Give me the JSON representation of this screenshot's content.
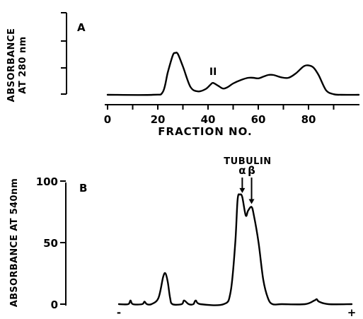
{
  "chart_data": [
    {
      "type": "line",
      "panel_label": "A",
      "xlabel": "FRACTION NO.",
      "ylabel_line1": "ABSORBANCE",
      "ylabel_line2": "AT 280 nm",
      "x_ticks": [
        0,
        20,
        40,
        60,
        80
      ],
      "xlim": [
        0,
        100
      ],
      "ylim": [
        0,
        1
      ],
      "annotations": [
        {
          "text": "II",
          "x": 42,
          "y": 0.35
        }
      ],
      "series": [
        {
          "x": [
            0,
            18,
            22,
            24,
            26,
            27,
            28,
            30,
            33,
            36,
            39,
            41,
            42,
            44,
            46,
            48,
            50,
            53,
            56,
            58,
            60,
            62,
            64,
            66,
            69,
            72,
            75,
            78,
            80,
            82,
            84,
            87,
            90,
            93,
            100
          ],
          "y": [
            0,
            0,
            0.05,
            0.4,
            0.7,
            0.74,
            0.72,
            0.5,
            0.14,
            0.06,
            0.1,
            0.18,
            0.21,
            0.16,
            0.11,
            0.14,
            0.2,
            0.26,
            0.3,
            0.3,
            0.29,
            0.32,
            0.35,
            0.35,
            0.31,
            0.3,
            0.38,
            0.5,
            0.52,
            0.48,
            0.35,
            0.08,
            0.01,
            0,
            0
          ]
        }
      ]
    },
    {
      "type": "line",
      "panel_label": "B",
      "ylabel": "ABSORBANCE AT 540nm",
      "y_ticks": [
        0,
        50,
        100
      ],
      "ylim": [
        0,
        100
      ],
      "x_end_labels": [
        "-",
        "+"
      ],
      "annotations": [
        {
          "text": "TUBULIN"
        },
        {
          "text": "α",
          "x": 0.53,
          "y": 88
        },
        {
          "text": "β",
          "x": 0.57,
          "y": 79
        }
      ],
      "series": [
        {
          "x": [
            0,
            0.04,
            0.05,
            0.06,
            0.1,
            0.11,
            0.12,
            0.14,
            0.17,
            0.19,
            0.2,
            0.21,
            0.22,
            0.23,
            0.27,
            0.28,
            0.3,
            0.32,
            0.33,
            0.35,
            0.45,
            0.48,
            0.5,
            0.51,
            0.52,
            0.53,
            0.545,
            0.555,
            0.57,
            0.58,
            0.6,
            0.62,
            0.64,
            0.66,
            0.7,
            0.8,
            0.84,
            0.85,
            0.86,
            0.9,
            1
          ],
          "y": [
            0,
            0,
            3,
            0,
            0,
            2,
            0,
            0,
            5,
            22,
            25,
            18,
            5,
            0,
            0,
            3,
            0,
            0,
            3,
            0,
            0,
            10,
            50,
            85,
            89,
            87,
            72,
            76,
            79,
            72,
            50,
            20,
            5,
            0,
            0,
            0,
            3,
            4,
            2,
            0,
            0
          ]
        }
      ]
    }
  ]
}
